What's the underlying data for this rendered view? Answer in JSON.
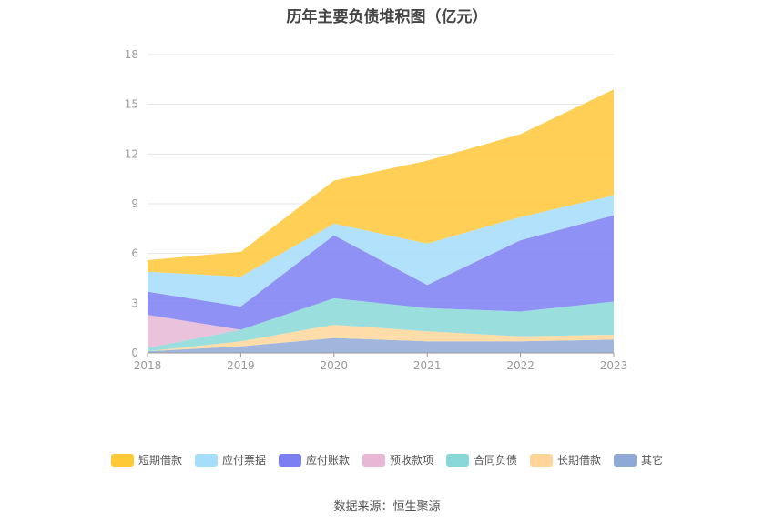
{
  "chart_data": {
    "type": "area",
    "stacked": true,
    "title": "历年主要负债堆积图（亿元）",
    "categories": [
      "2018",
      "2019",
      "2020",
      "2021",
      "2022",
      "2023"
    ],
    "ylim": [
      0,
      18
    ],
    "yticks": [
      0,
      3,
      6,
      9,
      12,
      15,
      18
    ],
    "series": [
      {
        "name": "其它",
        "color": "#8fa9d6",
        "values": [
          0.1,
          0.4,
          0.9,
          0.7,
          0.7,
          0.8
        ]
      },
      {
        "name": "长期借款",
        "color": "#ffd699",
        "values": [
          0.0,
          0.3,
          0.8,
          0.6,
          0.3,
          0.3
        ]
      },
      {
        "name": "合同负债",
        "color": "#88d8d8",
        "values": [
          0.2,
          0.7,
          1.6,
          1.4,
          1.5,
          2.0
        ]
      },
      {
        "name": "预收款项",
        "color": "#e8b7d6",
        "values": [
          2.0,
          0.0,
          0.0,
          0.0,
          0.0,
          0.0
        ]
      },
      {
        "name": "应付账款",
        "color": "#7b7ff2",
        "values": [
          1.4,
          1.4,
          3.8,
          1.4,
          4.3,
          5.2
        ]
      },
      {
        "name": "应付票据",
        "color": "#a5ddfa",
        "values": [
          1.2,
          1.8,
          0.7,
          2.5,
          1.4,
          1.2
        ]
      },
      {
        "name": "短期借款",
        "color": "#ffc837",
        "values": [
          0.7,
          1.5,
          2.6,
          5.0,
          5.0,
          6.4
        ]
      }
    ],
    "legend_order": [
      "短期借款",
      "应付票据",
      "应付账款",
      "预收款项",
      "合同负债",
      "长期借款",
      "其它"
    ],
    "legend_position": "bottom",
    "source": "数据来源：恒生聚源"
  }
}
